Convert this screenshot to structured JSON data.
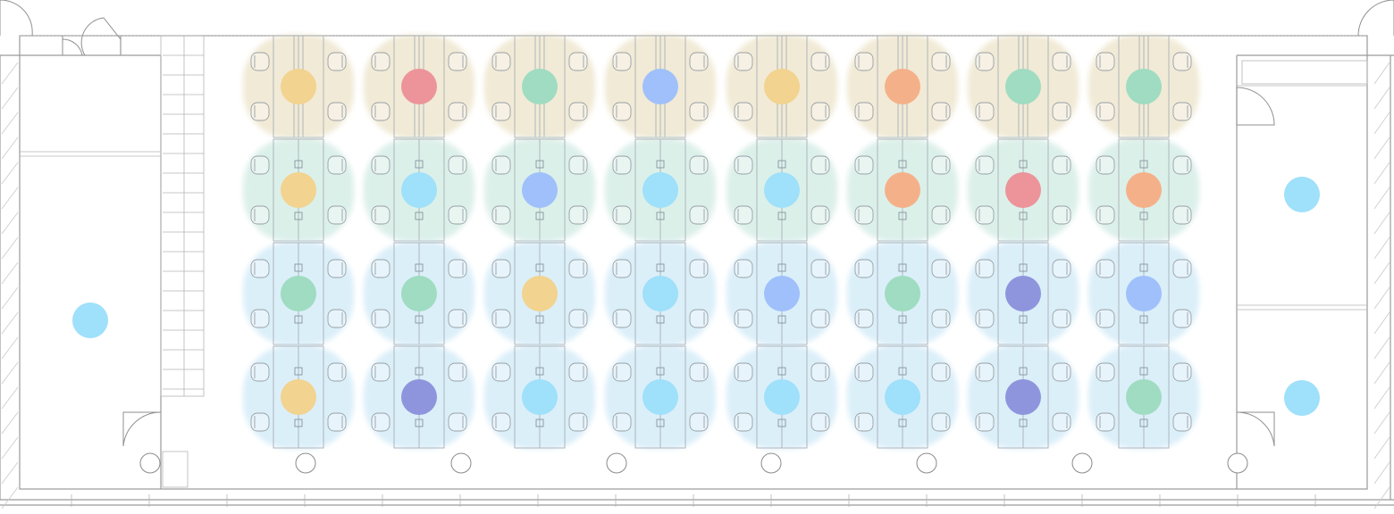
{
  "colors": {
    "zone_tan": "#efe6cf",
    "zone_mint": "#d6ede6",
    "zone_sky": "#d5ecf8",
    "dot_yellow": "#f2d38f",
    "dot_red": "#ec949a",
    "dot_green": "#9fdcc1",
    "dot_blue": "#9fc0fa",
    "dot_sky": "#9fe0fa",
    "dot_orange": "#f4b189",
    "dot_indigo": "#8f95dc"
  },
  "workstation_zones": [
    "tan",
    "mint",
    "sky",
    "sky"
  ],
  "workstation_dots": [
    [
      "yellow",
      "red",
      "green",
      "blue",
      "yellow",
      "orange",
      "green",
      "green"
    ],
    [
      "yellow",
      "sky",
      "blue",
      "sky",
      "sky",
      "orange",
      "red",
      "orange"
    ],
    [
      "green",
      "green",
      "yellow",
      "sky",
      "blue",
      "green",
      "indigo",
      "blue"
    ],
    [
      "yellow",
      "indigo",
      "sky",
      "sky",
      "sky",
      "sky",
      "indigo",
      "green"
    ]
  ],
  "room_dots": [
    {
      "room": "left-office",
      "color": "sky"
    },
    {
      "room": "right-office-top",
      "color": "sky"
    },
    {
      "room": "right-office-bottom",
      "color": "sky"
    }
  ]
}
